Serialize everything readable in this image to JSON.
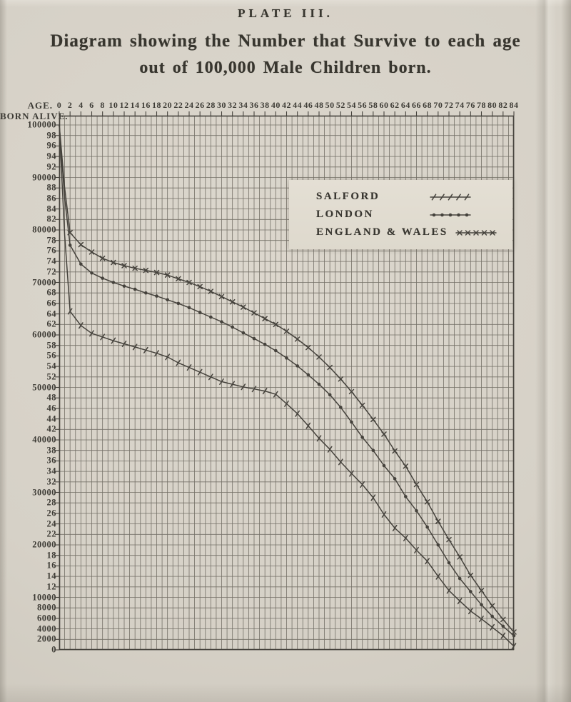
{
  "page": {
    "plate_title": "PLATE III.",
    "title_line1": "Diagram showing the Number that Survive to each age",
    "title_line2": "out of 100,000 Male Children born."
  },
  "axes": {
    "x_label": "AGE.",
    "y_label": "BORN ALIVE.",
    "x_ticks": [
      "0",
      "2",
      "4",
      "6",
      "8",
      "10",
      "12",
      "14",
      "16",
      "18",
      "20",
      "22",
      "24",
      "26",
      "28",
      "30",
      "32",
      "34",
      "36",
      "38",
      "40",
      "42",
      "44",
      "46",
      "48",
      "50",
      "52",
      "54",
      "56",
      "58",
      "60",
      "62",
      "64",
      "66",
      "68",
      "70",
      "72",
      "74",
      "76",
      "78",
      "80",
      "82",
      "84"
    ],
    "y_ticks": [
      "100000",
      "98",
      "96",
      "94",
      "92",
      "90000",
      "88",
      "86",
      "84",
      "82",
      "80000",
      "78",
      "76",
      "74",
      "72",
      "70000",
      "68",
      "66",
      "64",
      "62",
      "60000",
      "58",
      "56",
      "54",
      "52",
      "50000",
      "48",
      "46",
      "44",
      "42",
      "40000",
      "38",
      "36",
      "34",
      "32",
      "30000",
      "28",
      "26",
      "24",
      "22",
      "20000",
      "18",
      "16",
      "14",
      "12",
      "10000",
      "8000",
      "6000",
      "4000",
      "2000",
      "0"
    ]
  },
  "legend": {
    "items": [
      {
        "label": "SALFORD",
        "marker": "slash"
      },
      {
        "label": "LONDON",
        "marker": "dot"
      },
      {
        "label": "ENGLAND & WALES",
        "marker": "cross"
      }
    ]
  },
  "colors": {
    "paper": "#d6d1c7",
    "ink": "#45423c",
    "grid": "#67635a",
    "legend_patch": "#e2ddd2"
  },
  "chart_data": {
    "type": "line",
    "title": "Diagram showing the Number that Survive to each age out of 100,000 Male Children born.",
    "xlabel": "AGE.",
    "ylabel": "BORN ALIVE.",
    "xlim": [
      0,
      84
    ],
    "ylim": [
      0,
      100000
    ],
    "grid": "on",
    "x_gridline_step_years": 1,
    "y_gridline_step": 2000,
    "x_ticklabel_step_years": 2,
    "legend_position": "inset box, upper centre",
    "x": [
      0,
      1,
      2,
      4,
      6,
      8,
      10,
      12,
      14,
      16,
      18,
      20,
      22,
      24,
      26,
      28,
      30,
      32,
      34,
      36,
      38,
      40,
      42,
      44,
      46,
      48,
      50,
      52,
      54,
      56,
      58,
      60,
      62,
      64,
      66,
      68,
      70,
      72,
      74,
      76,
      78,
      80,
      82,
      84
    ],
    "series": [
      {
        "name": "SALFORD",
        "marker": "slash",
        "values": [
          100000,
          79000,
          64500,
          61800,
          60300,
          59600,
          58900,
          58300,
          57700,
          57100,
          56500,
          55800,
          54700,
          53800,
          52900,
          52000,
          51100,
          50600,
          50100,
          49700,
          49300,
          48700,
          46900,
          45000,
          42700,
          40300,
          38200,
          35800,
          33600,
          31500,
          29000,
          25800,
          23200,
          21300,
          19000,
          16900,
          14000,
          11300,
          9300,
          7400,
          5900,
          4300,
          2700,
          700
        ]
      },
      {
        "name": "LONDON",
        "marker": "dot",
        "values": [
          100000,
          86000,
          77100,
          73500,
          71800,
          70800,
          70000,
          69300,
          68700,
          68000,
          67400,
          66700,
          66000,
          65200,
          64300,
          63400,
          62500,
          61500,
          60400,
          59300,
          58200,
          57000,
          55600,
          54100,
          52400,
          50600,
          48600,
          46200,
          43400,
          40500,
          38000,
          35100,
          32600,
          29200,
          26500,
          23400,
          20000,
          16600,
          13600,
          11100,
          8600,
          6400,
          4500,
          2700
        ]
      },
      {
        "name": "ENGLAND & WALES",
        "marker": "cross",
        "values": [
          100000,
          88000,
          79500,
          77200,
          75800,
          74600,
          73800,
          73200,
          72700,
          72300,
          71900,
          71400,
          70700,
          70000,
          69200,
          68300,
          67300,
          66300,
          65300,
          64200,
          63100,
          62000,
          60700,
          59200,
          57600,
          55800,
          53800,
          51600,
          49200,
          46600,
          43900,
          41100,
          37900,
          35000,
          31500,
          28200,
          24500,
          21000,
          17700,
          14200,
          11300,
          8400,
          5800,
          3400
        ]
      }
    ]
  }
}
